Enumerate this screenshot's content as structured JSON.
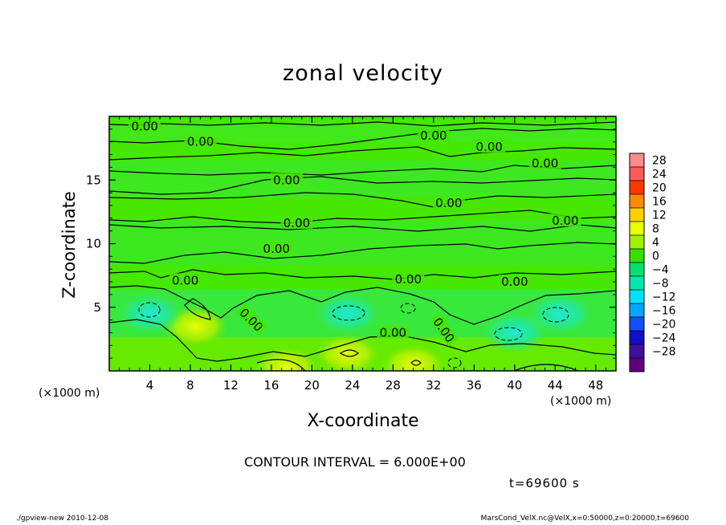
{
  "chart_data": {
    "type": "heatmap",
    "title": "zonal velocity",
    "xlabel": "X-coordinate",
    "ylabel": "Z-coordinate",
    "x_unit": "(×1000 m)",
    "y_unit": "(×1000 m)",
    "xlim": [
      0,
      50
    ],
    "ylim": [
      0,
      20
    ],
    "x_ticks": [
      4,
      8,
      12,
      16,
      20,
      24,
      28,
      32,
      36,
      40,
      44,
      48
    ],
    "y_ticks": [
      5,
      10,
      15
    ],
    "colorbar_levels": [
      28,
      24,
      20,
      16,
      12,
      8,
      4,
      0,
      -4,
      -8,
      -12,
      -16,
      -20,
      -24,
      -28
    ],
    "colorbar_colors": [
      "#ff8a8a",
      "#ff5a5a",
      "#ff3a00",
      "#ff8c00",
      "#ffd000",
      "#e8ff00",
      "#a0f000",
      "#33e000",
      "#00e070",
      "#00e8b0",
      "#00e0ff",
      "#00a8ff",
      "#1050ff",
      "#1010c8",
      "#4010a0",
      "#600080"
    ],
    "contour_labels": [
      "0.00",
      "0.00",
      "0.00",
      "0.00",
      "0.00",
      "0.00",
      "0.00",
      "0.00",
      "0.00",
      "0.00",
      "0.00",
      "0.00",
      "0.00",
      "0.00",
      "0.00",
      "0.00"
    ],
    "contour_interval_text": "CONTOUR INTERVAL =  6.000E+00",
    "time_text": "t=69600  s",
    "features": [
      {
        "x": 8.5,
        "z": 3.5,
        "sign": "positive",
        "value": 6
      },
      {
        "x": 17.5,
        "z": 0.3,
        "sign": "positive",
        "value": 6
      },
      {
        "x": 23.5,
        "z": 4.5,
        "sign": "negative",
        "value": -6
      },
      {
        "x": 4.0,
        "z": 4.5,
        "sign": "negative",
        "value": -6
      },
      {
        "x": 40.0,
        "z": 3.0,
        "sign": "negative",
        "value": -6
      },
      {
        "x": 44.5,
        "z": 4.5,
        "sign": "negative",
        "value": -6
      },
      {
        "x": 23.5,
        "z": 1.3,
        "sign": "positive",
        "value": 6
      },
      {
        "x": 30.0,
        "z": 0.5,
        "sign": "positive",
        "value": 6
      }
    ]
  },
  "footer": {
    "left": "./gpview-new   2010-12-08",
    "right": "MarsCond_VelX.nc@VelX,x=0:50000,z=0:20000,t=69600"
  }
}
